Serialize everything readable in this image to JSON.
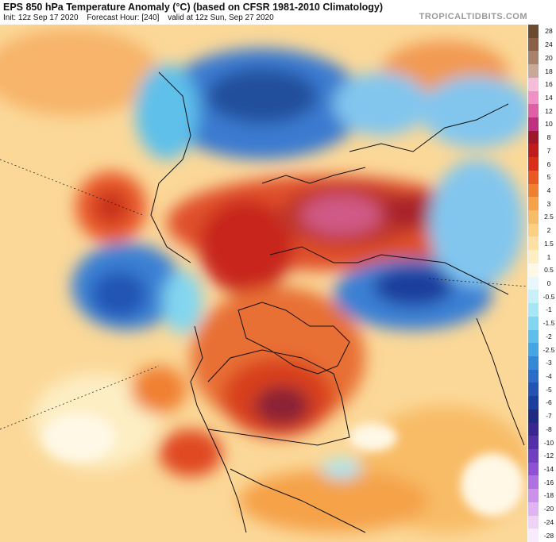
{
  "header": {
    "title": "EPS 850 hPa Temperature Anomaly (°C) (based on CFSR 1981-2010 Climatology)",
    "init": "Init: 12z Sep 17 2020",
    "forecast_hour": "Forecast Hour: [240]",
    "valid": "valid at 12z Sun, Sep 27 2020",
    "brand": "TROPICALTIDBITS.COM"
  },
  "colorbar": {
    "ticks": [
      "28",
      "24",
      "20",
      "18",
      "16",
      "14",
      "12",
      "10",
      "8",
      "7",
      "6",
      "5",
      "4",
      "3",
      "2.5",
      "2",
      "1.5",
      "1",
      "0.5",
      "0",
      "-0.5",
      "-1",
      "-1.5",
      "-2",
      "-2.5",
      "-3",
      "-4",
      "-5",
      "-6",
      "-7",
      "-8",
      "-10",
      "-12",
      "-14",
      "-16",
      "-18",
      "-20",
      "-24",
      "-28"
    ],
    "colors": [
      "#6b4a30",
      "#8a6146",
      "#a8826a",
      "#c8a896",
      "#f4bdd8",
      "#f090c4",
      "#e060a8",
      "#c03080",
      "#a01828",
      "#c01c1c",
      "#d83018",
      "#e85a22",
      "#f08030",
      "#f5a24a",
      "#f8bc66",
      "#fbd084",
      "#fde0a4",
      "#fdeec4",
      "#fff8e6",
      "#e6f8fc",
      "#c8f0f8",
      "#a6e6f5",
      "#82d6f0",
      "#5ec0ea",
      "#44a6e2",
      "#3488d8",
      "#2a6cc8",
      "#2354b4",
      "#1c3e9c",
      "#202a80",
      "#3a2690",
      "#5430a8",
      "#7040c0",
      "#9050d4",
      "#b070e0",
      "#cc92ea",
      "#e0b4f2",
      "#eed2f8",
      "#f8ecfc"
    ]
  }
}
